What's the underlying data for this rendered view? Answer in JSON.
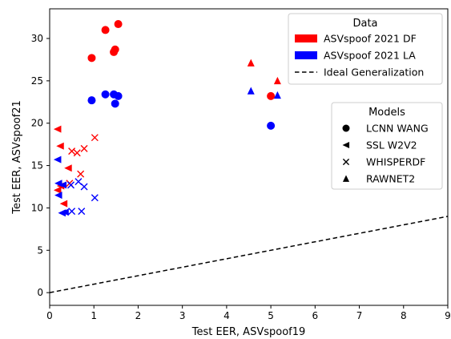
{
  "chart_data": {
    "type": "scatter",
    "xlabel": "Test EER, ASVspoof19",
    "ylabel": "Test EER, ASVspoof21",
    "xlim": [
      0,
      9
    ],
    "ylim": [
      -1.5,
      33.5
    ],
    "xticks": [
      "0",
      "1",
      "2",
      "3",
      "4",
      "5",
      "6",
      "7",
      "8",
      "9"
    ],
    "yticks": [
      "0",
      "5",
      "10",
      "15",
      "20",
      "25",
      "30"
    ],
    "grid": false,
    "legend_data": {
      "title": "Data",
      "placement": "top-right",
      "entries": [
        {
          "label": "ASVspoof 2021 DF",
          "color": "#ff0000",
          "swatch": "patch"
        },
        {
          "label": "ASVspoof 2021 LA",
          "color": "#0000ff",
          "swatch": "patch"
        },
        {
          "label": "Ideal Generalization",
          "color": "#000000",
          "swatch": "dashed-line"
        }
      ]
    },
    "legend_models": {
      "title": "Models",
      "placement": "center-right",
      "entries": [
        {
          "label": "LCNN WANG",
          "marker": "circle"
        },
        {
          "label": "SSL W2V2",
          "marker": "triangle-left"
        },
        {
          "label": "WHISPERDF",
          "marker": "x"
        },
        {
          "label": "RAWNET2",
          "marker": "triangle-up"
        }
      ]
    },
    "reference_line": {
      "label": "Ideal Generalization",
      "slope": 1,
      "intercept": 0,
      "style": "dashed"
    },
    "series": [
      {
        "dataset": "ASVspoof 2021 DF",
        "model": "LCNN WANG",
        "marker": "circle",
        "color": "#ff0000",
        "points": [
          [
            1.26,
            31.0
          ],
          [
            1.55,
            31.7
          ],
          [
            1.48,
            28.7
          ],
          [
            1.45,
            28.4
          ],
          [
            0.95,
            27.7
          ],
          [
            5.0,
            23.2
          ]
        ]
      },
      {
        "dataset": "ASVspoof 2021 LA",
        "model": "LCNN WANG",
        "marker": "circle",
        "color": "#0000ff",
        "points": [
          [
            1.26,
            23.4
          ],
          [
            1.45,
            23.4
          ],
          [
            1.55,
            23.2
          ],
          [
            0.95,
            22.7
          ],
          [
            1.48,
            22.3
          ],
          [
            5.0,
            19.7
          ]
        ]
      },
      {
        "dataset": "ASVspoof 2021 DF",
        "model": "SSL W2V2",
        "marker": "triangle-left",
        "color": "#ff0000",
        "points": [
          [
            0.18,
            19.3
          ],
          [
            0.24,
            17.3
          ],
          [
            0.42,
            14.7
          ],
          [
            0.25,
            12.6
          ],
          [
            0.18,
            12.1
          ],
          [
            0.32,
            10.5
          ]
        ]
      },
      {
        "dataset": "ASVspoof 2021 LA",
        "model": "SSL W2V2",
        "marker": "triangle-left",
        "color": "#0000ff",
        "points": [
          [
            0.18,
            15.7
          ],
          [
            0.2,
            12.9
          ],
          [
            0.3,
            12.7
          ],
          [
            0.2,
            11.5
          ],
          [
            0.28,
            9.4
          ],
          [
            0.35,
            9.5
          ]
        ]
      },
      {
        "dataset": "ASVspoof 2021 DF",
        "model": "WHISPERDF",
        "marker": "x",
        "color": "#ff0000",
        "points": [
          [
            0.5,
            16.7
          ],
          [
            0.62,
            16.5
          ],
          [
            0.78,
            17.0
          ],
          [
            1.02,
            18.3
          ],
          [
            0.7,
            14.0
          ],
          [
            0.45,
            12.9
          ]
        ]
      },
      {
        "dataset": "ASVspoof 2021 LA",
        "model": "WHISPERDF",
        "marker": "x",
        "color": "#0000ff",
        "points": [
          [
            0.48,
            12.7
          ],
          [
            0.65,
            13.1
          ],
          [
            0.78,
            12.5
          ],
          [
            1.02,
            11.2
          ],
          [
            0.5,
            9.6
          ],
          [
            0.72,
            9.6
          ]
        ]
      },
      {
        "dataset": "ASVspoof 2021 DF",
        "model": "RAWNET2",
        "marker": "triangle-up",
        "color": "#ff0000",
        "points": [
          [
            4.55,
            27.1
          ],
          [
            5.15,
            25.0
          ]
        ]
      },
      {
        "dataset": "ASVspoof 2021 LA",
        "model": "RAWNET2",
        "marker": "triangle-up",
        "color": "#0000ff",
        "points": [
          [
            4.55,
            23.8
          ],
          [
            5.15,
            23.3
          ]
        ]
      }
    ]
  }
}
